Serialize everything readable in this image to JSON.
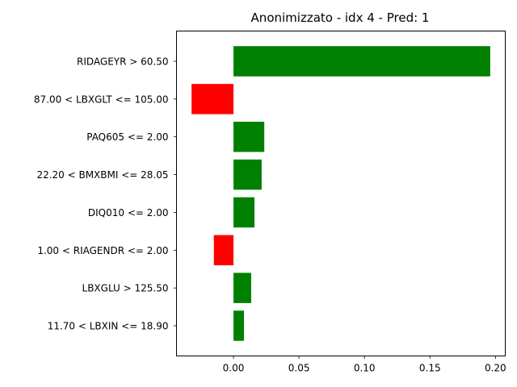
{
  "chart_data": {
    "type": "bar",
    "orientation": "horizontal",
    "title": "Anonimizzato - idx 4 - Pred: 1",
    "xlabel": "",
    "ylabel": "",
    "xlim": [
      -0.0435,
      0.2075
    ],
    "xticks": [
      0.0,
      0.05,
      0.1,
      0.15,
      0.2
    ],
    "xtick_labels": [
      "0.00",
      "0.05",
      "0.10",
      "0.15",
      "0.20"
    ],
    "grid": false,
    "categories": [
      "RIDAGEYR > 60.50",
      "87.00 < LBXGLT <= 105.00",
      "PAQ605 <= 2.00",
      "22.20 < BMXBMI <= 28.05",
      "DIQ010 <= 2.00",
      "1.00 < RIAGENDR <= 2.00",
      "LBXGLU > 125.50",
      "11.70 < LBXIN <= 18.90"
    ],
    "values": [
      0.196,
      -0.032,
      0.0235,
      0.0215,
      0.016,
      -0.015,
      0.0135,
      0.008
    ],
    "colors": {
      "positive": "#008000",
      "negative": "#ff0000"
    }
  }
}
